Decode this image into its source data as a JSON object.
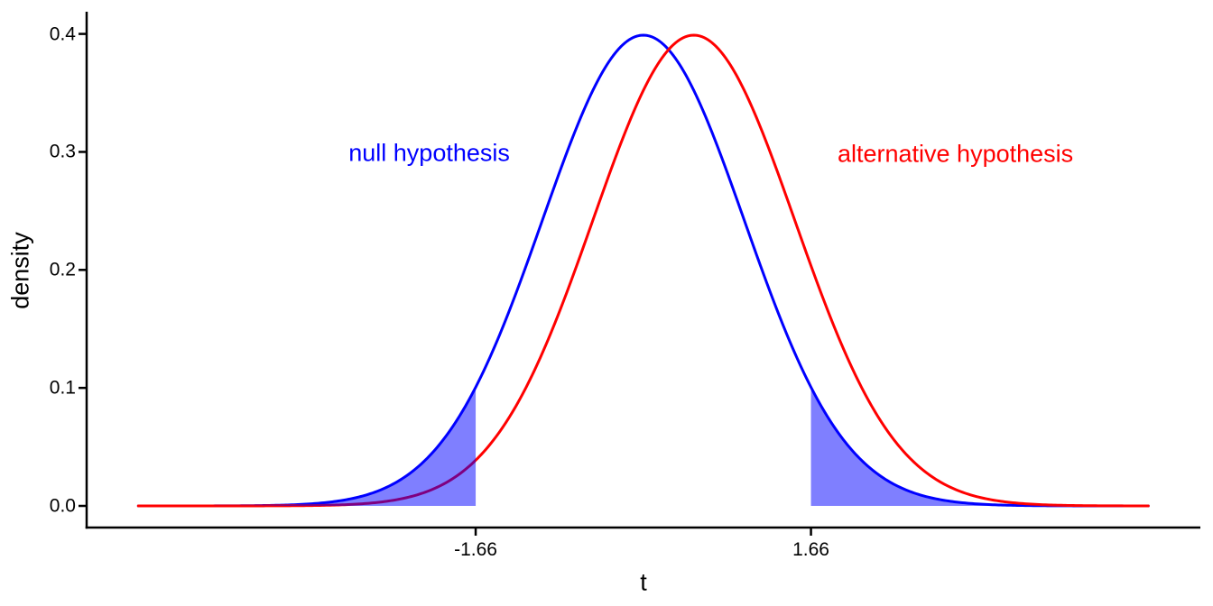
{
  "chart_data": {
    "type": "line",
    "title": "",
    "xlabel": "t",
    "ylabel": "density",
    "xlim": [
      -5.5,
      5.5
    ],
    "ylim": [
      0,
      0.42
    ],
    "x_ticks": [
      -1.66,
      1.66
    ],
    "x_tick_labels": [
      "-1.66",
      "1.66"
    ],
    "y_ticks": [
      0.0,
      0.1,
      0.2,
      0.3,
      0.4
    ],
    "y_tick_labels": [
      "0.0",
      "0.1",
      "0.2",
      "0.3",
      "0.4"
    ],
    "grid": "off",
    "legend": "none",
    "axis_color": "#000000",
    "background_color": "#ffffff",
    "series": [
      {
        "name": "null hypothesis",
        "color": "#0000ff",
        "distribution": "normal",
        "mean": 0,
        "sd": 1,
        "x_range": [
          -5,
          5
        ],
        "peak_density": 0.3989
      },
      {
        "name": "alternative hypothesis",
        "color": "#ff0000",
        "distribution": "normal",
        "mean": 0.5,
        "sd": 1,
        "x_range": [
          -5,
          5
        ],
        "peak_density": 0.3989
      }
    ],
    "critical_values": [
      -1.66,
      1.66
    ],
    "shaded_regions": [
      {
        "name": "rejection-region-left",
        "under_series": "null hypothesis",
        "x_range": [
          -5,
          -1.66
        ],
        "fill": "#0000ff",
        "opacity": 0.5
      },
      {
        "name": "rejection-region-right",
        "under_series": "null hypothesis",
        "x_range": [
          1.66,
          5
        ],
        "fill": "#0000ff",
        "opacity": 0.5
      }
    ],
    "annotations": [
      {
        "text": "null hypothesis",
        "color": "#0000ff",
        "x": -2.12,
        "y": 0.299
      },
      {
        "text": "alternative hypothesis",
        "color": "#ff0000",
        "x": 3.09,
        "y": 0.298
      }
    ]
  }
}
